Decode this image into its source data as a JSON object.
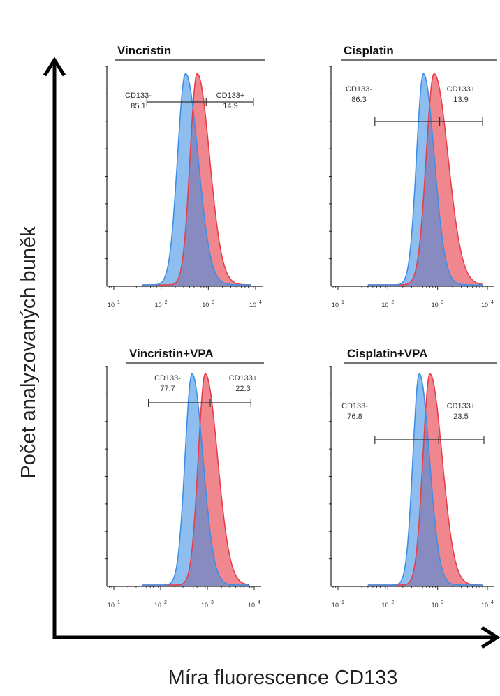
{
  "axes": {
    "y_title": "Počet analyzovaných buněk",
    "x_title": "Míra fluorescence  CD133"
  },
  "colors": {
    "neg": "#3d8fe6",
    "pos": "#e83d48",
    "overlap": "#8a4f9e"
  },
  "tick_labels": [
    "10",
    "10",
    "10",
    "10"
  ],
  "tick_exponents": [
    "1",
    "2",
    "3",
    "4"
  ],
  "chart_data": [
    {
      "type": "area",
      "title": "Vincristin",
      "xlim": [
        10,
        10000
      ],
      "x_scale": "log",
      "neg_label": "CD133-",
      "neg_value": "85.1",
      "pos_label": "CD133+",
      "pos_value": "14.9",
      "gate_range": [
        50,
        9000
      ],
      "gate_split": 900,
      "series": [
        {
          "name": "CD133-",
          "peak": 330,
          "width": 0.17
        },
        {
          "name": "CD133+",
          "peak": 580,
          "width": 0.15
        }
      ]
    },
    {
      "type": "area",
      "title": "Cisplatin",
      "xlim": [
        10,
        10000
      ],
      "x_scale": "log",
      "neg_label": "CD133-",
      "neg_value": "86.3",
      "pos_label": "CD133+",
      "pos_value": "13.9",
      "gate_range": [
        55,
        8000
      ],
      "gate_split": 1100,
      "series": [
        {
          "name": "CD133-",
          "peak": 520,
          "width": 0.14
        },
        {
          "name": "CD133+",
          "peak": 850,
          "width": 0.16
        }
      ]
    },
    {
      "type": "area",
      "title": "Vincristin+VPA",
      "xlim": [
        10,
        10000
      ],
      "x_scale": "log",
      "neg_label": "CD133-",
      "neg_value": "77.7",
      "pos_label": "CD133+",
      "pos_value": "22.3",
      "gate_range": [
        55,
        8500
      ],
      "gate_split": 1150,
      "series": [
        {
          "name": "CD133-",
          "peak": 470,
          "width": 0.15
        },
        {
          "name": "CD133+",
          "peak": 900,
          "width": 0.15
        }
      ]
    },
    {
      "type": "area",
      "title": "Cisplatin+VPA",
      "xlim": [
        10,
        10000
      ],
      "x_scale": "log",
      "neg_label": "CD133-",
      "neg_value": "76.8",
      "pos_label": "CD133+",
      "pos_value": "23.5",
      "gate_range": [
        55,
        8500
      ],
      "gate_split": 1050,
      "series": [
        {
          "name": "CD133-",
          "peak": 430,
          "width": 0.13
        },
        {
          "name": "CD133+",
          "peak": 700,
          "width": 0.14
        }
      ]
    }
  ]
}
